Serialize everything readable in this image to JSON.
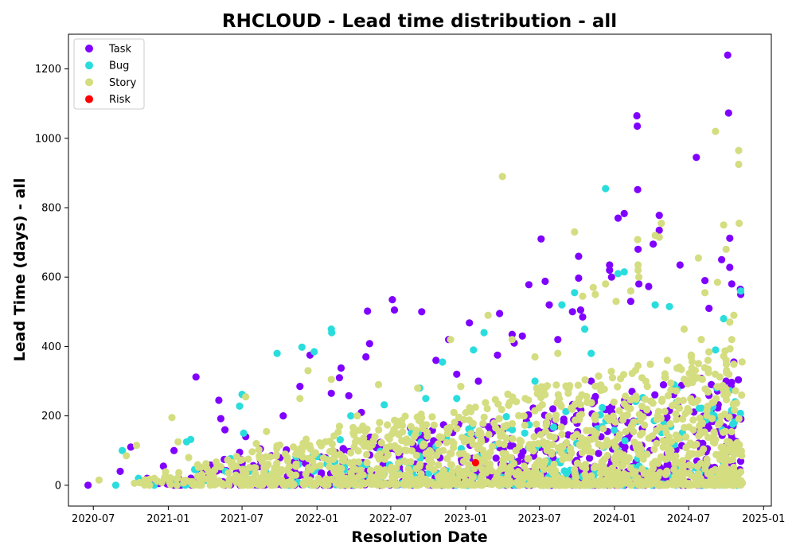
{
  "chart_data": {
    "type": "scatter",
    "title": "RHCLOUD - Lead time distribution - all",
    "xlabel": "Resolution Date",
    "ylabel": "Lead Time (days) - all",
    "x_is_date": true,
    "xlim": [
      "2020-05-01",
      "2025-01-20"
    ],
    "ylim": [
      -60,
      1300
    ],
    "xticks": [
      "2020-07",
      "2021-01",
      "2021-07",
      "2022-01",
      "2022-07",
      "2023-01",
      "2023-07",
      "2024-01",
      "2024-07",
      "2025-01"
    ],
    "yticks": [
      0,
      200,
      400,
      600,
      800,
      1000,
      1200
    ],
    "legend": {
      "position": "top-left"
    },
    "grid": false,
    "series": [
      {
        "name": "Task",
        "color": "#8000ff",
        "points": [
          [
            "2020-06-18",
            0
          ],
          [
            "2020-09-05",
            40
          ],
          [
            "2020-10-01",
            110
          ],
          [
            "2020-11-10",
            20
          ],
          [
            "2020-12-20",
            55
          ],
          [
            "2021-01-15",
            100
          ],
          [
            "2021-03-10",
            312
          ],
          [
            "2021-05-05",
            245
          ],
          [
            "2021-05-10",
            192
          ],
          [
            "2021-05-20",
            160
          ],
          [
            "2021-06-25",
            95
          ],
          [
            "2021-07-10",
            140
          ],
          [
            "2021-08-15",
            105
          ],
          [
            "2021-10-10",
            200
          ],
          [
            "2021-11-20",
            285
          ],
          [
            "2021-12-15",
            375
          ],
          [
            "2022-02-05",
            265
          ],
          [
            "2022-02-25",
            310
          ],
          [
            "2022-03-01",
            338
          ],
          [
            "2022-03-20",
            258
          ],
          [
            "2022-04-20",
            210
          ],
          [
            "2022-05-01",
            370
          ],
          [
            "2022-05-05",
            502
          ],
          [
            "2022-05-10",
            408
          ],
          [
            "2022-07-05",
            535
          ],
          [
            "2022-07-10",
            505
          ],
          [
            "2022-09-15",
            500
          ],
          [
            "2022-10-20",
            360
          ],
          [
            "2022-11-20",
            420
          ],
          [
            "2022-12-10",
            320
          ],
          [
            "2023-01-10",
            468
          ],
          [
            "2023-02-01",
            300
          ],
          [
            "2023-03-20",
            375
          ],
          [
            "2023-03-25",
            495
          ],
          [
            "2023-04-25",
            435
          ],
          [
            "2023-04-30",
            410
          ],
          [
            "2023-05-20",
            430
          ],
          [
            "2023-06-05",
            578
          ],
          [
            "2023-07-05",
            710
          ],
          [
            "2023-07-15",
            588
          ],
          [
            "2023-07-25",
            520
          ],
          [
            "2023-08-15",
            420
          ],
          [
            "2023-09-20",
            500
          ],
          [
            "2023-10-05",
            660
          ],
          [
            "2023-10-05",
            597
          ],
          [
            "2023-10-10",
            505
          ],
          [
            "2023-10-15",
            485
          ],
          [
            "2023-11-05",
            300
          ],
          [
            "2023-12-20",
            635
          ],
          [
            "2023-12-20",
            620
          ],
          [
            "2023-12-25",
            600
          ],
          [
            "2024-01-10",
            770
          ],
          [
            "2024-01-25",
            783
          ],
          [
            "2024-02-10",
            530
          ],
          [
            "2024-02-25",
            1065
          ],
          [
            "2024-02-26",
            1035
          ],
          [
            "2024-02-27",
            852
          ],
          [
            "2024-02-28",
            680
          ],
          [
            "2024-03-01",
            580
          ],
          [
            "2024-03-25",
            573
          ],
          [
            "2024-04-05",
            695
          ],
          [
            "2024-04-20",
            778
          ],
          [
            "2024-04-20",
            735
          ],
          [
            "2024-06-10",
            635
          ],
          [
            "2024-07-20",
            945
          ],
          [
            "2024-08-10",
            590
          ],
          [
            "2024-08-20",
            510
          ],
          [
            "2024-09-20",
            650
          ],
          [
            "2024-10-05",
            1240
          ],
          [
            "2024-10-07",
            1073
          ],
          [
            "2024-10-10",
            712
          ],
          [
            "2024-10-10",
            628
          ],
          [
            "2024-10-15",
            580
          ],
          [
            "2024-11-05",
            565
          ],
          [
            "2024-11-06",
            550
          ],
          [
            "2024-08-25",
            215
          ],
          [
            "2024-09-10",
            190
          ],
          [
            "2024-10-20",
            355
          ],
          [
            "2024-10-01",
            300
          ]
        ]
      },
      {
        "name": "Bug",
        "color": "#2adddd",
        "points": [
          [
            "2020-08-25",
            0
          ],
          [
            "2020-09-10",
            100
          ],
          [
            "2020-10-20",
            20
          ],
          [
            "2021-02-15",
            125
          ],
          [
            "2021-02-25",
            132
          ],
          [
            "2021-03-10",
            45
          ],
          [
            "2021-06-25",
            228
          ],
          [
            "2021-07-01",
            262
          ],
          [
            "2021-07-05",
            150
          ],
          [
            "2021-09-25",
            380
          ],
          [
            "2021-11-25",
            398
          ],
          [
            "2021-12-25",
            385
          ],
          [
            "2022-02-05",
            450
          ],
          [
            "2022-02-06",
            440
          ],
          [
            "2022-03-25",
            200
          ],
          [
            "2022-06-15",
            232
          ],
          [
            "2022-09-10",
            280
          ],
          [
            "2022-09-25",
            250
          ],
          [
            "2022-11-05",
            355
          ],
          [
            "2023-01-20",
            390
          ],
          [
            "2023-02-15",
            440
          ],
          [
            "2023-08-25",
            520
          ],
          [
            "2023-09-25",
            555
          ],
          [
            "2023-10-20",
            450
          ],
          [
            "2023-11-05",
            380
          ],
          [
            "2023-12-10",
            855
          ],
          [
            "2024-01-10",
            610
          ],
          [
            "2024-01-25",
            615
          ],
          [
            "2024-04-10",
            520
          ],
          [
            "2024-05-15",
            515
          ],
          [
            "2024-09-05",
            390
          ],
          [
            "2024-09-25",
            480
          ],
          [
            "2024-11-06",
            560
          ],
          [
            "2023-06-20",
            300
          ],
          [
            "2022-12-10",
            250
          ]
        ]
      },
      {
        "name": "Story",
        "color": "#d4dd80",
        "points": [
          [
            "2020-07-15",
            15
          ],
          [
            "2020-09-20",
            85
          ],
          [
            "2020-10-15",
            115
          ],
          [
            "2021-01-10",
            195
          ],
          [
            "2021-01-25",
            125
          ],
          [
            "2021-02-20",
            80
          ],
          [
            "2021-06-05",
            60
          ],
          [
            "2021-07-10",
            255
          ],
          [
            "2021-08-05",
            120
          ],
          [
            "2021-08-30",
            155
          ],
          [
            "2021-10-20",
            80
          ],
          [
            "2021-11-20",
            250
          ],
          [
            "2021-12-10",
            330
          ],
          [
            "2022-02-05",
            305
          ],
          [
            "2022-02-25",
            170
          ],
          [
            "2022-04-10",
            200
          ],
          [
            "2022-06-01",
            290
          ],
          [
            "2022-07-15",
            185
          ],
          [
            "2022-09-05",
            280
          ],
          [
            "2022-11-25",
            420
          ],
          [
            "2022-12-20",
            285
          ],
          [
            "2023-02-25",
            490
          ],
          [
            "2023-04-01",
            890
          ],
          [
            "2023-04-25",
            420
          ],
          [
            "2023-06-20",
            370
          ],
          [
            "2023-08-15",
            380
          ],
          [
            "2023-09-25",
            730
          ],
          [
            "2023-10-15",
            545
          ],
          [
            "2023-11-10",
            570
          ],
          [
            "2023-11-15",
            550
          ],
          [
            "2023-12-10",
            580
          ],
          [
            "2024-01-05",
            530
          ],
          [
            "2024-02-10",
            560
          ],
          [
            "2024-02-27",
            708
          ],
          [
            "2024-02-28",
            635
          ],
          [
            "2024-02-28",
            620
          ],
          [
            "2024-03-01",
            600
          ],
          [
            "2024-04-10",
            720
          ],
          [
            "2024-04-20",
            715
          ],
          [
            "2024-04-25",
            755
          ],
          [
            "2024-07-25",
            655
          ],
          [
            "2024-08-10",
            555
          ],
          [
            "2024-09-05",
            1020
          ],
          [
            "2024-09-10",
            585
          ],
          [
            "2024-09-25",
            750
          ],
          [
            "2024-10-01",
            680
          ],
          [
            "2024-10-10",
            470
          ],
          [
            "2024-10-20",
            490
          ],
          [
            "2024-11-01",
            965
          ],
          [
            "2024-11-01",
            925
          ],
          [
            "2024-11-02",
            755
          ],
          [
            "2024-10-15",
            420
          ],
          [
            "2024-08-01",
            420
          ],
          [
            "2024-06-20",
            450
          ]
        ]
      },
      {
        "name": "Risk",
        "color": "#ff0000",
        "points": [
          [
            "2023-01-25",
            65
          ]
        ]
      }
    ]
  }
}
